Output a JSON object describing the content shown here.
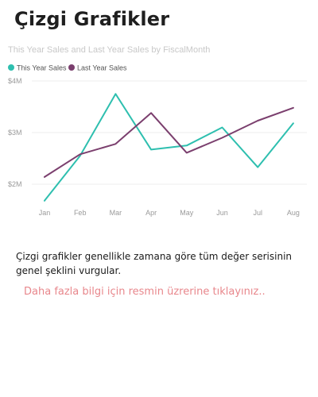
{
  "header": {
    "title": "Çizgi Grafikler"
  },
  "chart_data": {
    "type": "line",
    "title": "This Year Sales and Last Year Sales by FiscalMonth",
    "xlabel": "",
    "ylabel": "",
    "categories": [
      "Jan",
      "Feb",
      "Mar",
      "Apr",
      "May",
      "Jun",
      "Jul",
      "Aug"
    ],
    "series": [
      {
        "name": "This Year Sales",
        "color": "#2ebfaf",
        "values": [
          1.68,
          2.55,
          3.75,
          2.67,
          2.75,
          3.1,
          2.33,
          3.18
        ]
      },
      {
        "name": "Last Year Sales",
        "color": "#7b3f6e",
        "values": [
          2.14,
          2.58,
          2.78,
          3.38,
          2.61,
          2.9,
          3.23,
          3.48
        ]
      }
    ],
    "yticks": [
      {
        "value": 2,
        "label": "$2M"
      },
      {
        "value": 3,
        "label": "$3M"
      },
      {
        "value": 4,
        "label": "$4M"
      }
    ],
    "ylim": [
      1.6,
      4.0
    ],
    "grid": true,
    "legend_position": "top-left"
  },
  "body": {
    "description": "Çizgi grafikler genellikle zamana göre tüm değer serisinin genel şeklini vurgular.",
    "more_info": "Daha fazla bilgi için resmin üzrerine tıklayınız.."
  }
}
